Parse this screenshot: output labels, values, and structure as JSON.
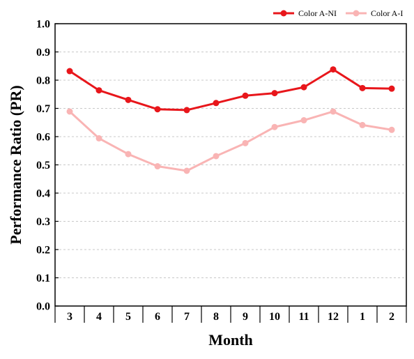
{
  "chart_data": {
    "type": "line",
    "categories": [
      "3",
      "4",
      "5",
      "6",
      "7",
      "8",
      "9",
      "10",
      "11",
      "12",
      "1",
      "2"
    ],
    "series": [
      {
        "name": "Color A-NI",
        "color": "#e8161b",
        "values": [
          0.832,
          0.764,
          0.73,
          0.697,
          0.694,
          0.719,
          0.745,
          0.754,
          0.775,
          0.838,
          0.772,
          0.77
        ]
      },
      {
        "name": "Color A-I",
        "color": "#f9b4b4",
        "values": [
          0.689,
          0.594,
          0.538,
          0.495,
          0.479,
          0.531,
          0.577,
          0.634,
          0.658,
          0.689,
          0.641,
          0.624
        ]
      }
    ],
    "xlabel": "Month",
    "ylabel": "Performance Ratio (PR)",
    "ylim": [
      0.0,
      1.0
    ],
    "yticks": [
      "0.0",
      "0.1",
      "0.2",
      "0.3",
      "0.4",
      "0.5",
      "0.6",
      "0.7",
      "0.8",
      "0.9",
      "1.0"
    ],
    "grid": "horizontal-dashed",
    "legend_position": "top-right"
  }
}
